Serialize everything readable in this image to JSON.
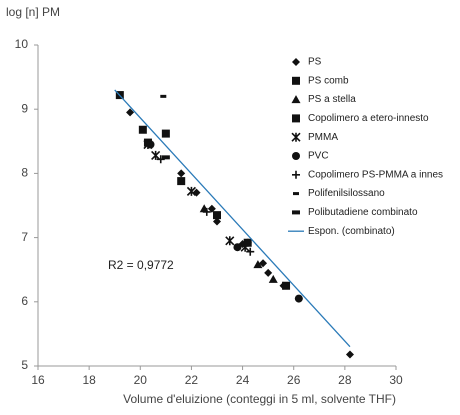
{
  "chart_data": {
    "type": "scatter",
    "y_label": "log [n] PM",
    "x_label": "Volume d'eluizione (conteggi in 5 ml, solvente THF)",
    "annotation": "R2 = 0,9772",
    "xlim": [
      16,
      30
    ],
    "xticks": [
      16,
      18,
      20,
      22,
      24,
      26,
      28,
      30
    ],
    "ylim": [
      5,
      10
    ],
    "yticks": [
      5,
      6,
      7,
      8,
      9,
      10
    ],
    "legend": "upper right",
    "series": [
      {
        "name": "PS",
        "marker": "diamond",
        "color": "#111111",
        "x": [
          19.6,
          21.6,
          22.2,
          22.8,
          23.0,
          24.0,
          24.8,
          25.0,
          25.6,
          28.2
        ],
        "values": [
          8.95,
          8.0,
          7.7,
          7.45,
          7.25,
          6.9,
          6.6,
          6.45,
          6.25,
          5.18
        ]
      },
      {
        "name": "PS comb",
        "marker": "square",
        "color": "#111111",
        "x": [
          19.2,
          20.1,
          21.0,
          21.6
        ],
        "values": [
          9.22,
          8.68,
          8.62,
          7.88
        ]
      },
      {
        "name": "PS a stella",
        "marker": "triangle",
        "color": "#111111",
        "x": [
          22.5,
          24.6,
          25.2
        ],
        "values": [
          7.45,
          6.58,
          6.35
        ]
      },
      {
        "name": "Copolimero a etero-innesto",
        "marker": "square",
        "color": "#111111",
        "x": [
          20.3,
          23.0,
          24.2,
          25.7
        ],
        "values": [
          8.48,
          7.35,
          6.92,
          6.25
        ]
      },
      {
        "name": "PMMA",
        "marker": "asterisk",
        "color": "#111111",
        "x": [
          20.3,
          20.6,
          22.0,
          23.5,
          24.1
        ],
        "values": [
          8.45,
          8.28,
          7.72,
          6.95,
          6.85
        ]
      },
      {
        "name": "PVC",
        "marker": "circle",
        "color": "#111111",
        "x": [
          20.4,
          23.8,
          24.2,
          26.2
        ],
        "values": [
          8.45,
          6.85,
          6.92,
          6.05
        ]
      },
      {
        "name": "Copolimero PS-PMMA a innes",
        "marker": "plus",
        "color": "#111111",
        "x": [
          20.8,
          22.6,
          24.3
        ],
        "values": [
          8.22,
          7.4,
          6.78
        ]
      },
      {
        "name": "Polifenilsilossano",
        "marker": "dash",
        "color": "#111111",
        "x": [
          20.9
        ],
        "values": [
          9.2
        ]
      },
      {
        "name": "Polibutadiene combinato",
        "marker": "bar",
        "color": "#111111",
        "x": [
          21.0
        ],
        "values": [
          8.25
        ]
      },
      {
        "name": "Espon. (combinato)",
        "type": "line",
        "color": "#2a7ab8",
        "x": [
          19.0,
          28.2
        ],
        "values": [
          9.3,
          5.3
        ]
      }
    ]
  }
}
